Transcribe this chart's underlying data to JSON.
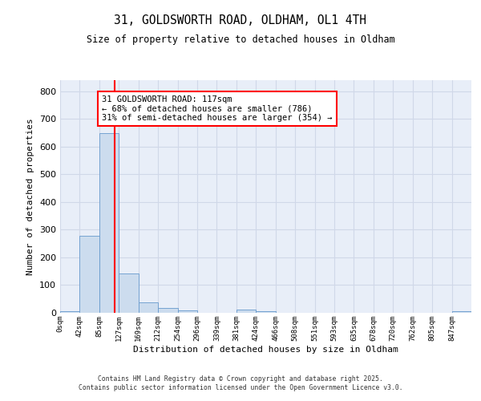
{
  "title1": "31, GOLDSWORTH ROAD, OLDHAM, OL1 4TH",
  "title2": "Size of property relative to detached houses in Oldham",
  "xlabel": "Distribution of detached houses by size in Oldham",
  "ylabel": "Number of detached properties",
  "bin_labels": [
    "0sqm",
    "42sqm",
    "85sqm",
    "127sqm",
    "169sqm",
    "212sqm",
    "254sqm",
    "296sqm",
    "339sqm",
    "381sqm",
    "424sqm",
    "466sqm",
    "508sqm",
    "551sqm",
    "593sqm",
    "635sqm",
    "678sqm",
    "720sqm",
    "762sqm",
    "805sqm",
    "847sqm"
  ],
  "bar_heights": [
    7,
    278,
    648,
    142,
    37,
    18,
    8,
    0,
    0,
    12,
    5,
    0,
    0,
    0,
    0,
    0,
    0,
    0,
    0,
    0,
    5
  ],
  "bar_color": "#ccdcee",
  "bar_edge_color": "#6699cc",
  "ylim": [
    0,
    840
  ],
  "yticks": [
    0,
    100,
    200,
    300,
    400,
    500,
    600,
    700,
    800
  ],
  "property_line_x": 117,
  "property_line_color": "red",
  "annotation_text": "31 GOLDSWORTH ROAD: 117sqm\n← 68% of detached houses are smaller (786)\n31% of semi-detached houses are larger (354) →",
  "annotation_box_color": "white",
  "annotation_box_edge_color": "red",
  "footer_text": "Contains HM Land Registry data © Crown copyright and database right 2025.\nContains public sector information licensed under the Open Government Licence v3.0.",
  "bin_width": 42,
  "background_color": "#e8eef8",
  "grid_color": "#d0d8e8"
}
